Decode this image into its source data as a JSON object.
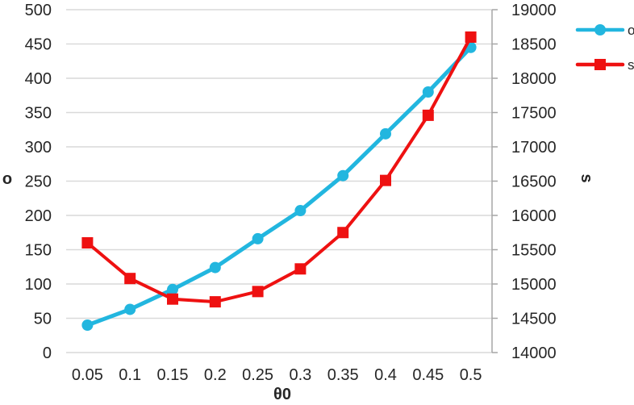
{
  "chart_data": {
    "type": "line",
    "title": "",
    "x": [
      0.05,
      0.1,
      0.15,
      0.2,
      0.25,
      0.3,
      0.35,
      0.4,
      0.45,
      0.5
    ],
    "x_axis": {
      "label": "θ0",
      "tick_labels": [
        "0.05",
        "0.1",
        "0.15",
        "0.2",
        "0.25",
        "0.3",
        "0.35",
        "0.4",
        "0.45",
        "0.5"
      ]
    },
    "left_axis": {
      "label": "o",
      "min": 0,
      "max": 500,
      "step": 50,
      "tick_labels": [
        "0",
        "50",
        "100",
        "150",
        "200",
        "250",
        "300",
        "350",
        "400",
        "450",
        "500"
      ]
    },
    "right_axis": {
      "label": "s",
      "min": 14000,
      "max": 19000,
      "step": 500,
      "tick_labels": [
        "14000",
        "14500",
        "15000",
        "15500",
        "16000",
        "16500",
        "17000",
        "17500",
        "18000",
        "18500",
        "19000"
      ]
    },
    "grid": true,
    "legend": {
      "position": "right",
      "entries": [
        "o",
        "s"
      ]
    },
    "series": [
      {
        "name": "o",
        "axis": "left",
        "marker": "circle",
        "color": "#22B6DF",
        "values": [
          40,
          63,
          92,
          124,
          166,
          207,
          258,
          319,
          380,
          445
        ]
      },
      {
        "name": "s",
        "axis": "right",
        "marker": "square",
        "color": "#EE1111",
        "values": [
          15600,
          15080,
          14780,
          14740,
          14890,
          15220,
          15750,
          16510,
          17460,
          18600
        ]
      }
    ],
    "colors": {
      "grid": "#D9D9D9",
      "axis": "#A6A6A6",
      "text": "#262626"
    }
  }
}
